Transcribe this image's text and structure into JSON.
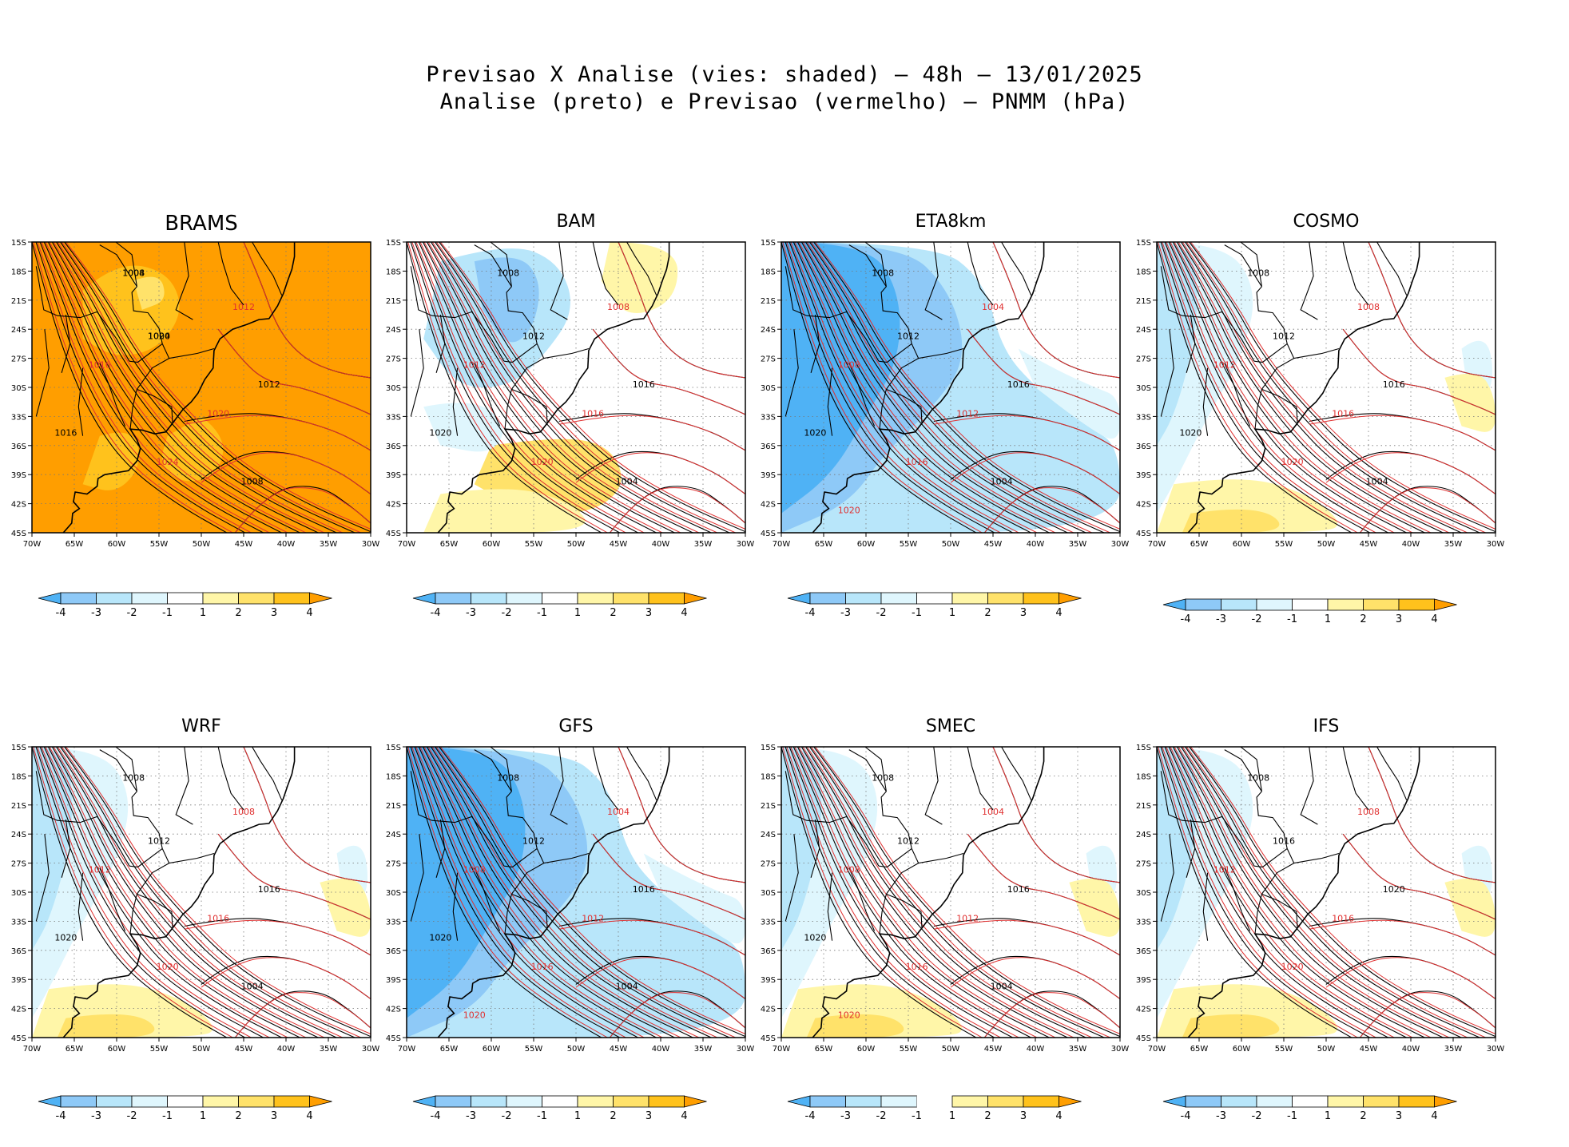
{
  "title": {
    "line1": "Previsao X Analise (vies: shaded) – 48h – 13/01/2025",
    "line2": "Analise (preto) e Previsao (vermelho) – PNMM (hPa)"
  },
  "axes": {
    "lat_labels": [
      "15S",
      "18S",
      "21S",
      "24S",
      "27S",
      "30S",
      "33S",
      "36S",
      "39S",
      "42S",
      "45S"
    ],
    "lon_labels": [
      "70W",
      "65W",
      "60W",
      "55W",
      "50W",
      "45W",
      "40W",
      "35W",
      "30W"
    ]
  },
  "legend": {
    "labels": [
      "-4",
      "-3",
      "-2",
      "-1",
      "1",
      "2",
      "3",
      "4"
    ],
    "colors": [
      "#4fb2f5",
      "#8ec9f7",
      "#b8e6fa",
      "#dff6fd",
      "#ffffff",
      "#fff6a8",
      "#ffe26a",
      "#ffc21c",
      "#ff9e00"
    ]
  },
  "colors": {
    "analysis": "#000000",
    "forecast": "#e03030",
    "coast": "#000000"
  },
  "panels": [
    {
      "name": "BRAMS",
      "bias": "warm",
      "labels_black": [
        "1008",
        "1004",
        "1012",
        "1016",
        "1008",
        "1004",
        "1020"
      ],
      "labels_red": [
        "1012",
        "1016",
        "1020",
        "1024"
      ]
    },
    {
      "name": "BAM",
      "bias": "mixed",
      "labels_black": [
        "1008",
        "1012",
        "1016",
        "1020",
        "1004"
      ],
      "labels_red": [
        "1008",
        "1012",
        "1016",
        "1020"
      ]
    },
    {
      "name": "ETA8km",
      "bias": "cold",
      "labels_black": [
        "1008",
        "1012",
        "1016",
        "1020",
        "1004"
      ],
      "labels_red": [
        "1004",
        "1008",
        "1012",
        "1016",
        "1020"
      ]
    },
    {
      "name": "COSMO",
      "bias": "light",
      "labels_black": [
        "1008",
        "1012",
        "1016",
        "1020",
        "1004"
      ],
      "labels_red": [
        "1008",
        "1012",
        "1016",
        "1020"
      ]
    },
    {
      "name": "WRF",
      "bias": "light",
      "labels_black": [
        "1008",
        "1012",
        "1016",
        "1020",
        "1004"
      ],
      "labels_red": [
        "1008",
        "1012",
        "1016",
        "1020"
      ]
    },
    {
      "name": "GFS",
      "bias": "cold",
      "labels_black": [
        "1008",
        "1012",
        "1016",
        "1020",
        "1004"
      ],
      "labels_red": [
        "1004",
        "1008",
        "1012",
        "1016",
        "1020"
      ]
    },
    {
      "name": "SMEC",
      "bias": "light",
      "labels_black": [
        "1008",
        "1012",
        "1016",
        "1020",
        "1004"
      ],
      "labels_red": [
        "1004",
        "1008",
        "1012",
        "1016",
        "1020"
      ]
    },
    {
      "name": "IFS",
      "bias": "light",
      "labels_black": [
        "1008",
        "1016",
        "1020"
      ],
      "labels_red": [
        "1008",
        "1012",
        "1016",
        "1020"
      ]
    }
  ]
}
